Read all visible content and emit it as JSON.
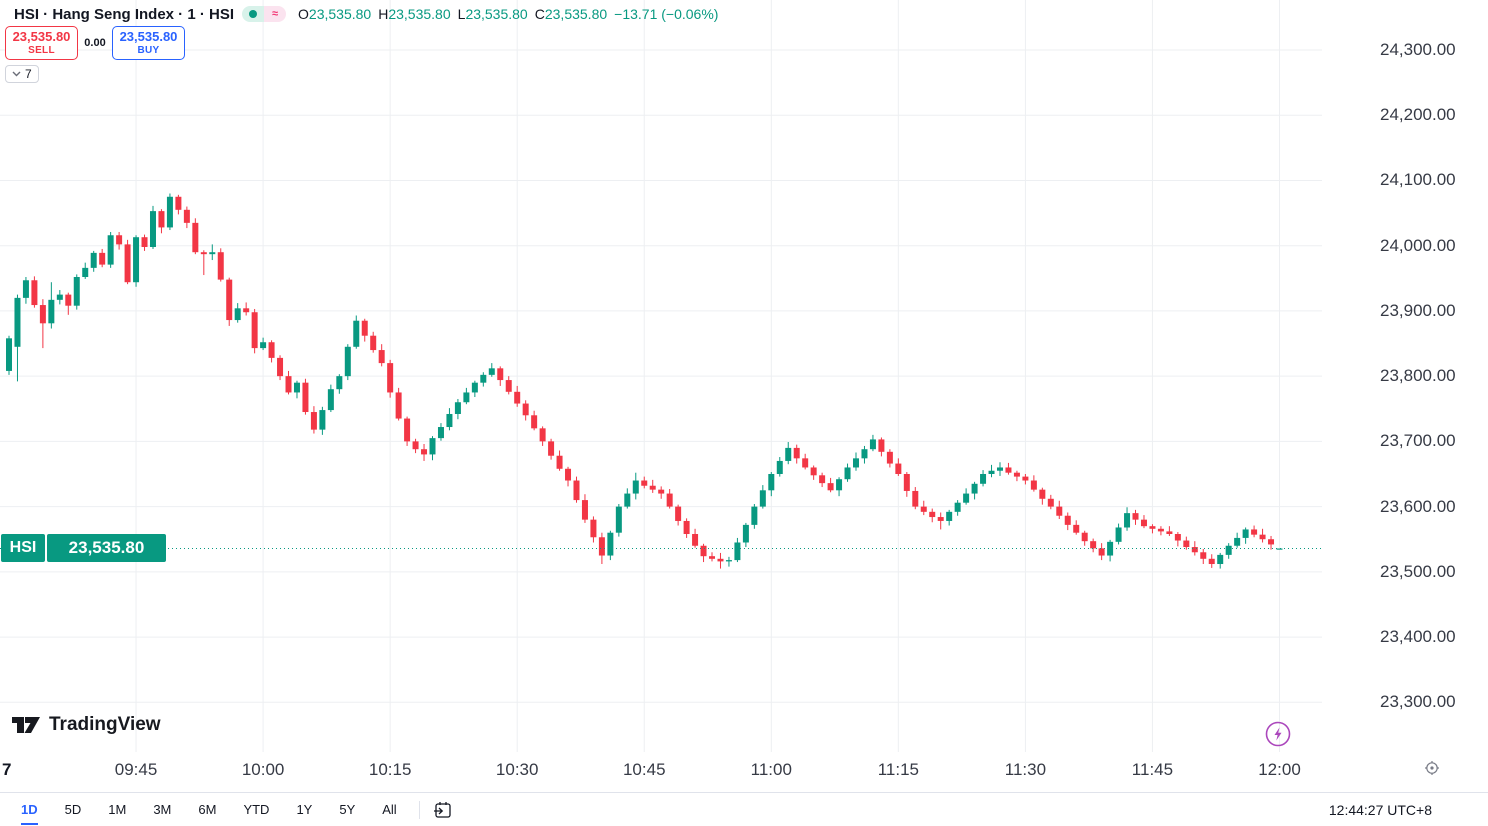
{
  "header": {
    "symbol_title": "HSI · Hang Seng Index · 1 · HSI",
    "status_icons": [
      "market-status-icon",
      "approximate-data-icon"
    ],
    "ohlc": {
      "o_label": "O",
      "o_value": "23,535.80",
      "h_label": "H",
      "h_value": "23,535.80",
      "l_label": "L",
      "l_value": "23,535.80",
      "c_label": "C",
      "c_value": "23,535.80",
      "change": "−13.71 (−0.06%)"
    }
  },
  "trade_panel": {
    "sell_price": "23,535.80",
    "sell_label": "SELL",
    "spread": "0.00",
    "buy_price": "23,535.80",
    "buy_label": "BUY",
    "positions_count": "7"
  },
  "watermark_text": "TradingView",
  "price_axis": {
    "ticks": [
      "24,300.00",
      "24,200.00",
      "24,100.00",
      "24,000.00",
      "23,900.00",
      "23,800.00",
      "23,700.00",
      "23,600.00",
      "23,500.00",
      "23,400.00",
      "23,300.00"
    ],
    "last_badge": {
      "symbol": "HSI",
      "price": "23,535.80"
    }
  },
  "time_axis": {
    "day_marker": "7",
    "ticks": [
      "09:45",
      "10:00",
      "10:15",
      "10:30",
      "10:45",
      "11:00",
      "11:15",
      "11:30",
      "11:45",
      "12:00"
    ]
  },
  "toolbar": {
    "ranges": [
      "1D",
      "5D",
      "1M",
      "3M",
      "6M",
      "YTD",
      "1Y",
      "5Y",
      "All"
    ],
    "active_range": "1D",
    "clock": "12:44:27 UTC+8"
  },
  "colors": {
    "up": "#089981",
    "down": "#f23645",
    "grid": "#edeff2",
    "buy_blue": "#2962ff",
    "sell_red": "#f23645",
    "purple_marker": "#ab47bc"
  },
  "chart_data": {
    "type": "candlestick",
    "symbol": "HSI",
    "interval_minutes": 1,
    "session_start": "09:30",
    "last_price": 23535.8,
    "price_tick_values": [
      24300,
      24200,
      24100,
      24000,
      23900,
      23800,
      23700,
      23600,
      23500,
      23400,
      23300
    ],
    "time_tick_indices": [
      15,
      30,
      45,
      60,
      75,
      90,
      105,
      120,
      135,
      150
    ],
    "ylim": [
      23270,
      24330
    ],
    "grid": true,
    "candles": [
      [
        23808,
        23862,
        23802,
        23858
      ],
      [
        23845,
        23925,
        23792,
        23920
      ],
      [
        23920,
        23952,
        23911,
        23947
      ],
      [
        23947,
        23953,
        23905,
        23909
      ],
      [
        23909,
        23918,
        23843,
        23881
      ],
      [
        23881,
        23944,
        23873,
        23917
      ],
      [
        23917,
        23932,
        23910,
        23925
      ],
      [
        23925,
        23928,
        23894,
        23908
      ],
      [
        23908,
        23956,
        23902,
        23952
      ],
      [
        23952,
        23974,
        23949,
        23966
      ],
      [
        23966,
        23992,
        23960,
        23989
      ],
      [
        23989,
        23995,
        23967,
        23971
      ],
      [
        23971,
        24021,
        23966,
        24016
      ],
      [
        24016,
        24021,
        23994,
        24002
      ],
      [
        24002,
        24009,
        23941,
        23944
      ],
      [
        23944,
        24016,
        23937,
        24013
      ],
      [
        24013,
        24017,
        23992,
        23998
      ],
      [
        23998,
        24061,
        23995,
        24053
      ],
      [
        24053,
        24056,
        24019,
        24028
      ],
      [
        24028,
        24080,
        24024,
        24075
      ],
      [
        24075,
        24078,
        24048,
        24055
      ],
      [
        24055,
        24060,
        24027,
        24035
      ],
      [
        24035,
        24042,
        23987,
        23990
      ],
      [
        23990,
        23993,
        23955,
        23987
      ],
      [
        23987,
        24002,
        23978,
        23990
      ],
      [
        23990,
        23996,
        23945,
        23948
      ],
      [
        23948,
        23951,
        23877,
        23886
      ],
      [
        23886,
        23912,
        23882,
        23904
      ],
      [
        23904,
        23913,
        23893,
        23898
      ],
      [
        23898,
        23903,
        23835,
        23843
      ],
      [
        23843,
        23859,
        23840,
        23852
      ],
      [
        23852,
        23855,
        23821,
        23828
      ],
      [
        23828,
        23832,
        23794,
        23800
      ],
      [
        23800,
        23808,
        23772,
        23775
      ],
      [
        23775,
        23793,
        23766,
        23790
      ],
      [
        23790,
        23796,
        23741,
        23745
      ],
      [
        23745,
        23754,
        23712,
        23718
      ],
      [
        23718,
        23753,
        23710,
        23748
      ],
      [
        23748,
        23787,
        23745,
        23780
      ],
      [
        23780,
        23803,
        23773,
        23800
      ],
      [
        23800,
        23849,
        23794,
        23845
      ],
      [
        23845,
        23893,
        23842,
        23885
      ],
      [
        23885,
        23888,
        23853,
        23862
      ],
      [
        23862,
        23868,
        23836,
        23840
      ],
      [
        23840,
        23849,
        23815,
        23820
      ],
      [
        23820,
        23825,
        23767,
        23775
      ],
      [
        23775,
        23782,
        23732,
        23735
      ],
      [
        23735,
        23738,
        23693,
        23700
      ],
      [
        23700,
        23704,
        23682,
        23688
      ],
      [
        23688,
        23696,
        23670,
        23680
      ],
      [
        23680,
        23708,
        23671,
        23705
      ],
      [
        23705,
        23728,
        23701,
        23722
      ],
      [
        23722,
        23751,
        23717,
        23742
      ],
      [
        23742,
        23765,
        23734,
        23760
      ],
      [
        23760,
        23782,
        23757,
        23775
      ],
      [
        23775,
        23793,
        23768,
        23790
      ],
      [
        23790,
        23806,
        23784,
        23802
      ],
      [
        23802,
        23820,
        23799,
        23812
      ],
      [
        23812,
        23815,
        23785,
        23794
      ],
      [
        23794,
        23800,
        23772,
        23776
      ],
      [
        23776,
        23785,
        23753,
        23758
      ],
      [
        23758,
        23763,
        23732,
        23740
      ],
      [
        23740,
        23747,
        23717,
        23720
      ],
      [
        23720,
        23723,
        23693,
        23700
      ],
      [
        23700,
        23704,
        23672,
        23678
      ],
      [
        23678,
        23686,
        23655,
        23658
      ],
      [
        23658,
        23661,
        23631,
        23640
      ],
      [
        23640,
        23646,
        23606,
        23610
      ],
      [
        23610,
        23619,
        23575,
        23580
      ],
      [
        23580,
        23585,
        23545,
        23553
      ],
      [
        23553,
        23560,
        23512,
        23525
      ],
      [
        23525,
        23563,
        23518,
        23560
      ],
      [
        23560,
        23604,
        23554,
        23600
      ],
      [
        23600,
        23628,
        23597,
        23620
      ],
      [
        23620,
        23652,
        23611,
        23640
      ],
      [
        23640,
        23646,
        23628,
        23632
      ],
      [
        23632,
        23641,
        23621,
        23626
      ],
      [
        23626,
        23631,
        23612,
        23620
      ],
      [
        23620,
        23627,
        23597,
        23600
      ],
      [
        23600,
        23603,
        23571,
        23578
      ],
      [
        23578,
        23582,
        23552,
        23558
      ],
      [
        23558,
        23566,
        23537,
        23540
      ],
      [
        23540,
        23543,
        23515,
        23524
      ],
      [
        23524,
        23530,
        23516,
        23520
      ],
      [
        23520,
        23529,
        23505,
        23516
      ],
      [
        23516,
        23523,
        23508,
        23518
      ],
      [
        23518,
        23552,
        23515,
        23545
      ],
      [
        23545,
        23575,
        23538,
        23572
      ],
      [
        23572,
        23604,
        23566,
        23600
      ],
      [
        23600,
        23633,
        23597,
        23625
      ],
      [
        23625,
        23653,
        23616,
        23650
      ],
      [
        23650,
        23676,
        23646,
        23670
      ],
      [
        23670,
        23699,
        23665,
        23690
      ],
      [
        23690,
        23695,
        23666,
        23674
      ],
      [
        23674,
        23681,
        23657,
        23660
      ],
      [
        23660,
        23663,
        23641,
        23648
      ],
      [
        23648,
        23652,
        23630,
        23636
      ],
      [
        23636,
        23644,
        23622,
        23625
      ],
      [
        23625,
        23645,
        23616,
        23642
      ],
      [
        23642,
        23666,
        23638,
        23660
      ],
      [
        23660,
        23683,
        23655,
        23674
      ],
      [
        23674,
        23693,
        23666,
        23688
      ],
      [
        23688,
        23710,
        23685,
        23703
      ],
      [
        23703,
        23706,
        23677,
        23684
      ],
      [
        23684,
        23688,
        23660,
        23666
      ],
      [
        23666,
        23674,
        23647,
        23650
      ],
      [
        23650,
        23653,
        23615,
        23624
      ],
      [
        23624,
        23630,
        23596,
        23600
      ],
      [
        23600,
        23609,
        23587,
        23592
      ],
      [
        23592,
        23597,
        23576,
        23584
      ],
      [
        23584,
        23591,
        23565,
        23578
      ],
      [
        23578,
        23595,
        23571,
        23592
      ],
      [
        23592,
        23610,
        23586,
        23606
      ],
      [
        23606,
        23628,
        23603,
        23620
      ],
      [
        23620,
        23638,
        23611,
        23635
      ],
      [
        23635,
        23656,
        23631,
        23650
      ],
      [
        23650,
        23664,
        23645,
        23655
      ],
      [
        23655,
        23668,
        23647,
        23660
      ],
      [
        23660,
        23667,
        23649,
        23652
      ],
      [
        23652,
        23655,
        23639,
        23646
      ],
      [
        23646,
        23650,
        23634,
        23640
      ],
      [
        23640,
        23648,
        23623,
        23626
      ],
      [
        23626,
        23629,
        23603,
        23612
      ],
      [
        23612,
        23618,
        23596,
        23600
      ],
      [
        23600,
        23609,
        23581,
        23586
      ],
      [
        23586,
        23591,
        23564,
        23572
      ],
      [
        23572,
        23579,
        23557,
        23560
      ],
      [
        23560,
        23563,
        23540,
        23547
      ],
      [
        23547,
        23551,
        23530,
        23536
      ],
      [
        23536,
        23544,
        23518,
        23525
      ],
      [
        23525,
        23549,
        23516,
        23546
      ],
      [
        23546,
        23574,
        23542,
        23568
      ],
      [
        23568,
        23599,
        23563,
        23590
      ],
      [
        23590,
        23595,
        23572,
        23580
      ],
      [
        23580,
        23587,
        23567,
        23570
      ],
      [
        23570,
        23573,
        23559,
        23566
      ],
      [
        23566,
        23570,
        23556,
        23562
      ],
      [
        23562,
        23570,
        23555,
        23558
      ],
      [
        23558,
        23561,
        23539,
        23548
      ],
      [
        23548,
        23554,
        23534,
        23538
      ],
      [
        23538,
        23547,
        23525,
        23530
      ],
      [
        23530,
        23535,
        23512,
        23520
      ],
      [
        23520,
        23527,
        23506,
        23512
      ],
      [
        23512,
        23529,
        23505,
        23526
      ],
      [
        23526,
        23544,
        23520,
        23540
      ],
      [
        23540,
        23560,
        23537,
        23552
      ],
      [
        23552,
        23568,
        23543,
        23565
      ],
      [
        23565,
        23571,
        23553,
        23557
      ],
      [
        23557,
        23566,
        23545,
        23550
      ],
      [
        23550,
        23555,
        23534,
        23542
      ],
      [
        23535.8,
        23535.8,
        23535.8,
        23535.8
      ]
    ]
  }
}
